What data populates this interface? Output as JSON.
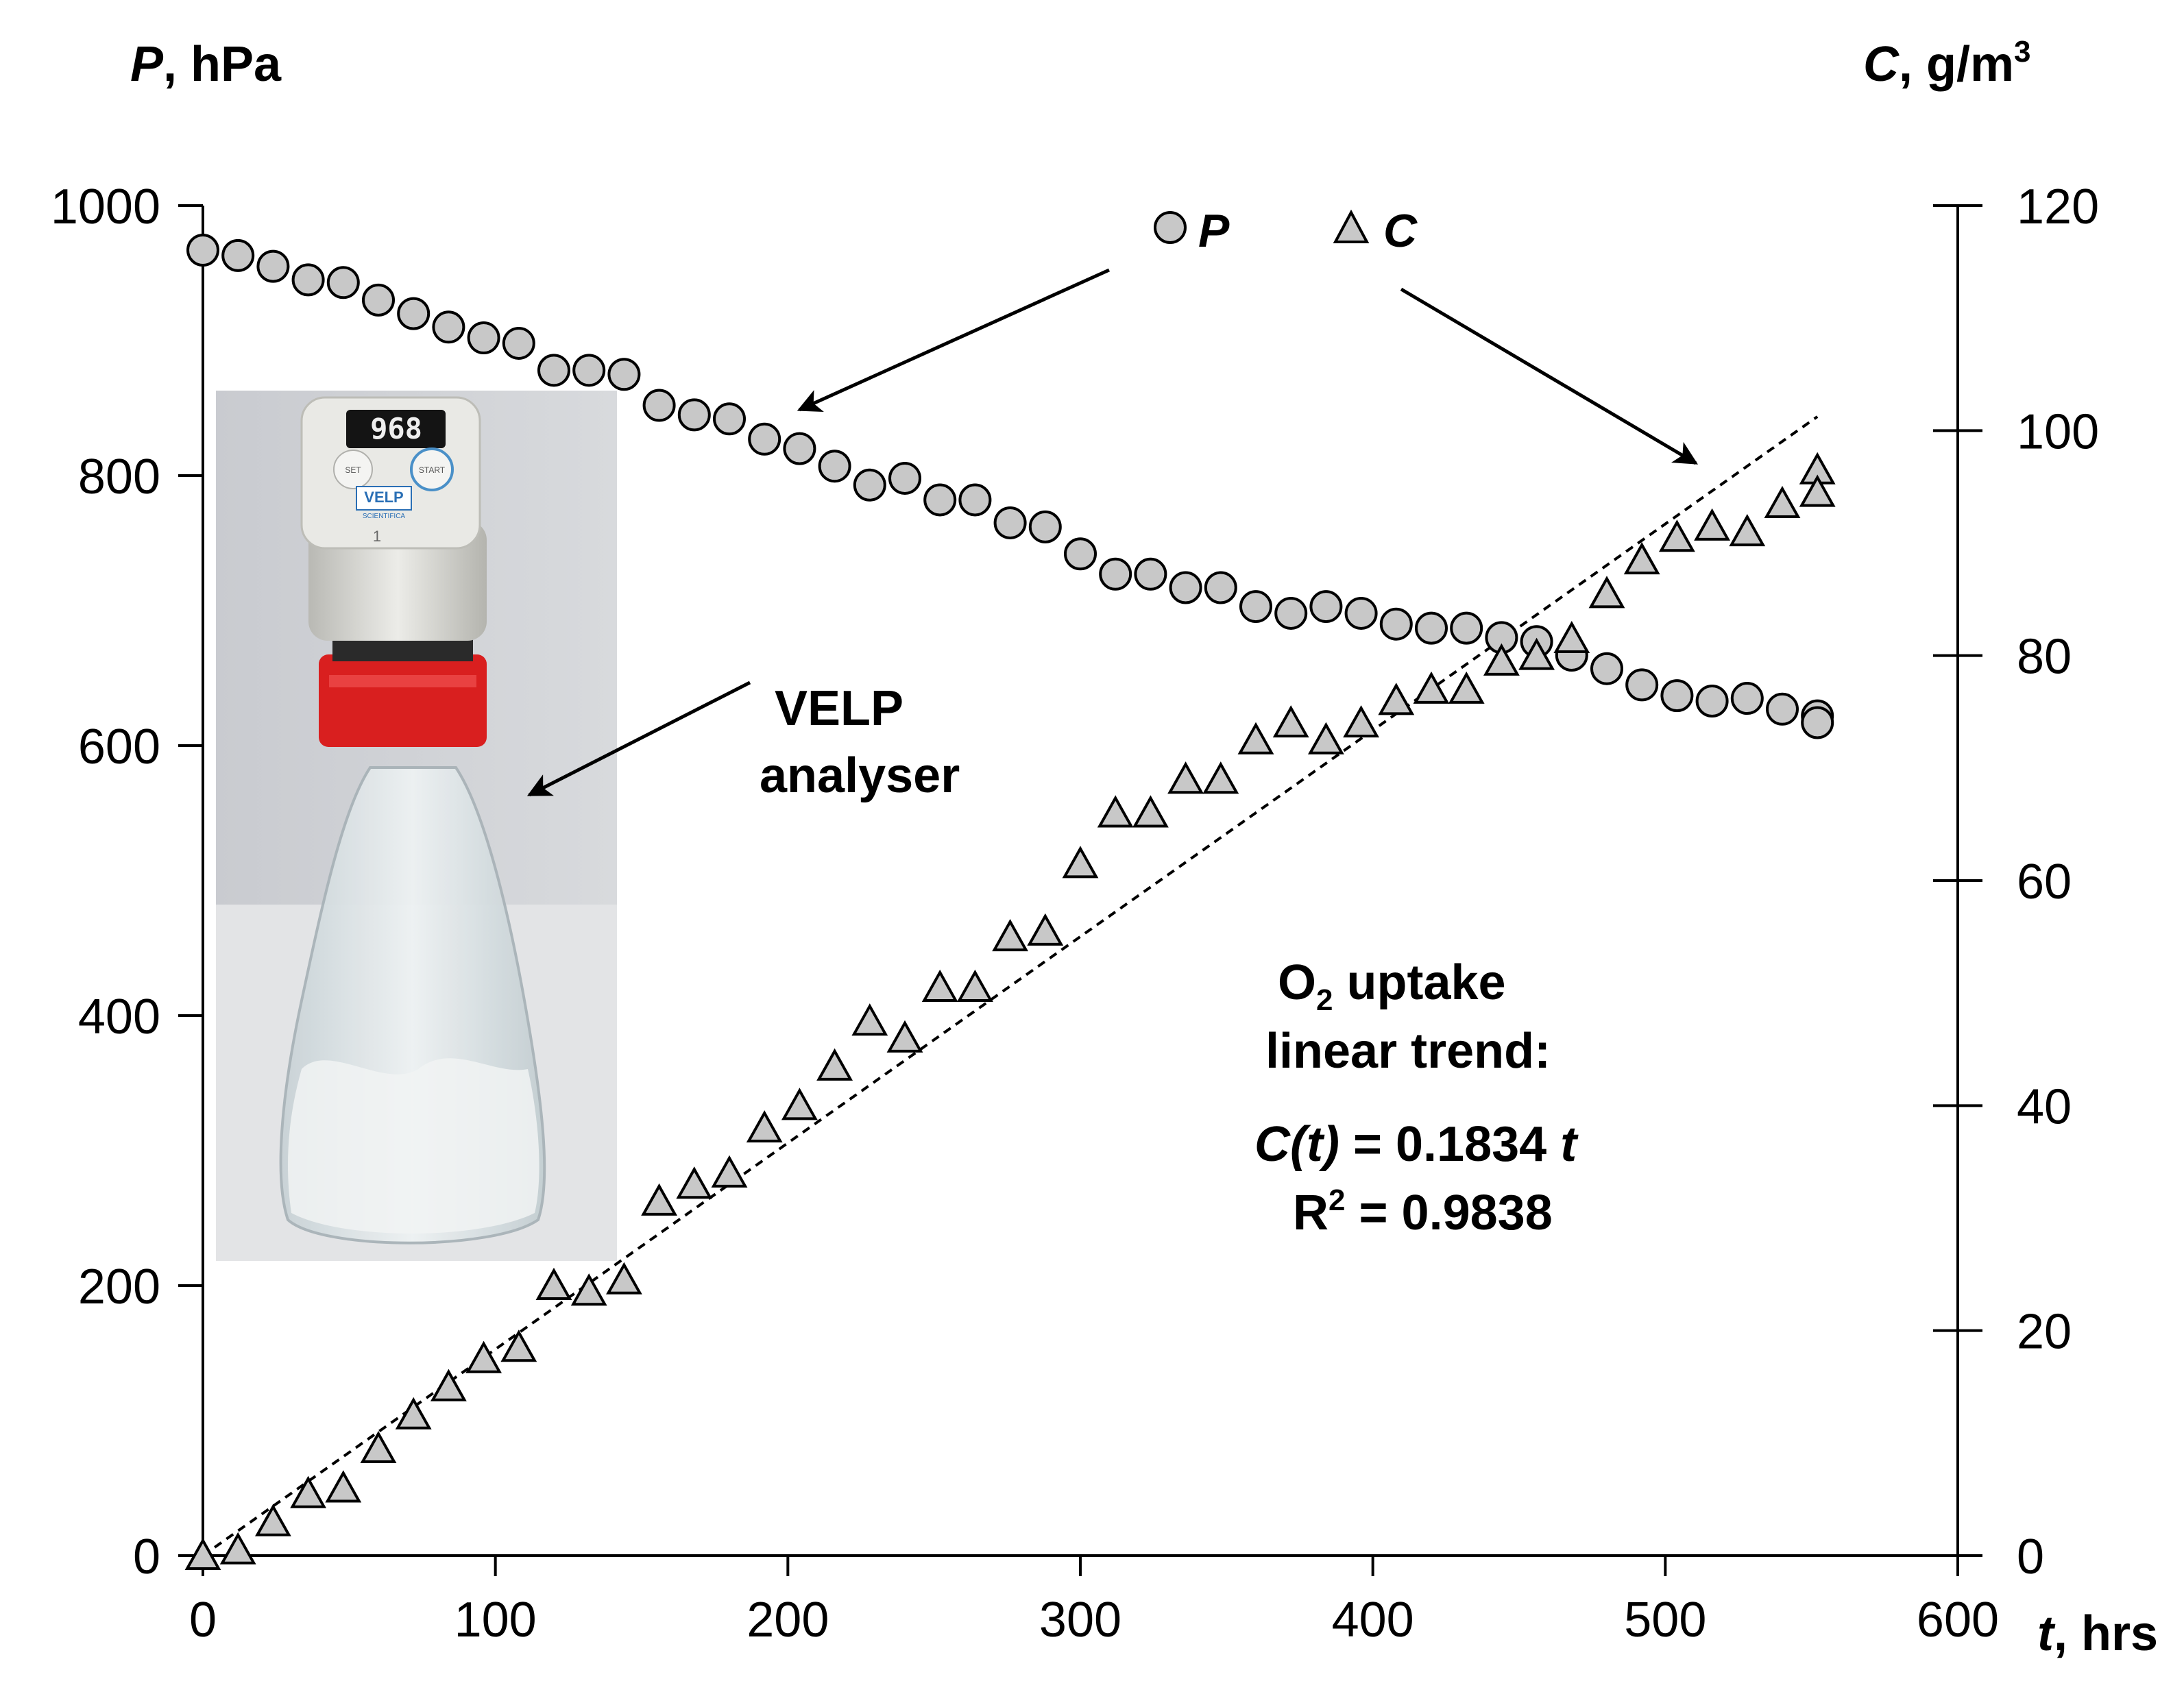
{
  "chart_data": {
    "type": "scatter",
    "left_axis_title": {
      "var": "P",
      "unit": ", hPa"
    },
    "right_axis_title": {
      "var": "C",
      "unit": ", g/m",
      "sup": "3"
    },
    "x_axis_title": {
      "var": "t",
      "unit": ", hrs"
    },
    "xlim": [
      0,
      600
    ],
    "ylim_left": [
      0,
      1000
    ],
    "ylim_right": [
      0,
      120
    ],
    "x_ticks": [
      "0",
      "100",
      "200",
      "300",
      "400",
      "500",
      "600"
    ],
    "y_left_ticks": [
      "0",
      "200",
      "400",
      "600",
      "800",
      "1000"
    ],
    "y_right_ticks": [
      "0",
      "20",
      "40",
      "60",
      "80",
      "100",
      "120"
    ],
    "grid": false,
    "legend": [
      {
        "label": "P",
        "marker": "circle"
      },
      {
        "label": "C",
        "marker": "triangle"
      }
    ],
    "marker_fill": "#c8c8c8",
    "series": [
      {
        "name": "P",
        "axis": "left",
        "marker": "circle",
        "x": [
          0,
          12,
          24,
          36,
          48,
          60,
          72,
          84,
          96,
          108,
          120,
          132,
          144,
          156,
          168,
          180,
          192,
          204,
          216,
          228,
          240,
          252,
          264,
          276,
          288,
          300,
          312,
          324,
          336,
          348,
          360,
          372,
          384,
          396,
          408,
          420,
          432,
          444,
          456,
          468,
          480,
          492,
          504,
          516,
          528,
          540,
          552,
          552
        ],
        "y": [
          967,
          963,
          955,
          945,
          943,
          930,
          920,
          910,
          902,
          898,
          878,
          878,
          875,
          852,
          845,
          842,
          827,
          820,
          807,
          793,
          798,
          782,
          782,
          765,
          762,
          742,
          727,
          727,
          717,
          717,
          703,
          698,
          703,
          698,
          690,
          687,
          687,
          680,
          677,
          667,
          657,
          645,
          637,
          633,
          635,
          627,
          622,
          617
        ]
      },
      {
        "name": "C",
        "axis": "right",
        "marker": "triangle",
        "x": [
          0,
          12,
          24,
          36,
          48,
          60,
          72,
          84,
          96,
          108,
          120,
          132,
          144,
          156,
          168,
          180,
          192,
          204,
          216,
          228,
          240,
          252,
          264,
          276,
          288,
          300,
          312,
          324,
          336,
          348,
          360,
          372,
          384,
          396,
          408,
          420,
          432,
          444,
          456,
          468,
          480,
          492,
          504,
          516,
          528,
          540,
          552,
          552
        ],
        "y": [
          0,
          0.5,
          3,
          5.5,
          6,
          9.5,
          12.5,
          15,
          17.5,
          18.5,
          24,
          23.5,
          24.5,
          31.5,
          33,
          34,
          38,
          40,
          43.5,
          47.5,
          46,
          50.5,
          50.5,
          55,
          55.5,
          61.5,
          66,
          66,
          69,
          69,
          72.5,
          74,
          72.5,
          74,
          76,
          77,
          77,
          79.5,
          80,
          81.5,
          85.5,
          88.5,
          90.5,
          91.5,
          91,
          93.5,
          96.5,
          94.5
        ]
      },
      {
        "name": "C(t) = 0.1834 t",
        "axis": "right",
        "style": "dashed-line",
        "slope": 0.1834,
        "x": [
          0,
          552
        ],
        "y": [
          0,
          101.24
        ]
      }
    ],
    "annotations": {
      "velp_line1": "VELP",
      "velp_line2": "analyser",
      "o2_prefix": "O",
      "o2_sub": "2",
      "o2_rest": " uptake",
      "trend_line2": "linear trend:",
      "eq_ct": "C(t)",
      "eq_body": " = 0.1834 ",
      "eq_t": "t",
      "r2_r": "R",
      "r2_sup": "2",
      "r2_body": " = 0.9838"
    },
    "photo": {
      "display": "968",
      "btn_set": "SET",
      "btn_start": "START",
      "brand": "VELP",
      "brand_sub": "SCIENTIFICA",
      "unit_no": "1"
    }
  }
}
